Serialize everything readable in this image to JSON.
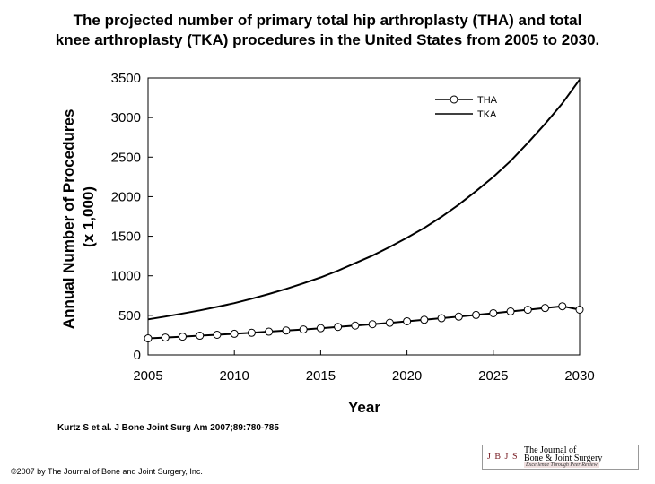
{
  "title_line1": "The projected number of primary total hip arthroplasty (THA) and total",
  "title_line2": "knee arthroplasty (TKA) procedures in the United States from 2005 to 2030.",
  "citation": "Kurtz S et al. J Bone Joint Surg Am 2007;89:780-785",
  "copyright": "©2007 by The Journal of Bone and Joint Surgery, Inc.",
  "logo": {
    "mark": "J B J S",
    "line1": "The Journal of",
    "line2": "Bone & Joint Surgery",
    "tagline": "Excellence Through Peer Review",
    "color": "#7a2027"
  },
  "chart_data": {
    "type": "line",
    "xlabel": "Year",
    "ylabel": [
      "Annual Number of Procedures",
      "(x 1,000)"
    ],
    "xlim": [
      2005,
      2030
    ],
    "ylim": [
      0,
      3500
    ],
    "xticks": [
      2005,
      2010,
      2015,
      2020,
      2025,
      2030
    ],
    "yticks": [
      0,
      500,
      1000,
      1500,
      2000,
      2500,
      3000,
      3500
    ],
    "grid": false,
    "legend_position": "top-right",
    "series": [
      {
        "name": "THA",
        "marker": "circle",
        "color": "#000000",
        "x": [
          2005,
          2006,
          2007,
          2008,
          2009,
          2010,
          2011,
          2012,
          2013,
          2014,
          2015,
          2016,
          2017,
          2018,
          2019,
          2020,
          2021,
          2022,
          2023,
          2024,
          2025,
          2026,
          2027,
          2028,
          2029,
          2030
        ],
        "y": [
          209,
          220,
          231,
          243,
          255,
          267,
          280,
          294,
          308,
          322,
          338,
          354,
          371,
          388,
          406,
          425,
          444,
          464,
          484,
          505,
          527,
          549,
          571,
          593,
          615,
          572
        ]
      },
      {
        "name": "TKA",
        "marker": "none",
        "color": "#000000",
        "x": [
          2005,
          2006,
          2007,
          2008,
          2009,
          2010,
          2011,
          2012,
          2013,
          2014,
          2015,
          2016,
          2017,
          2018,
          2019,
          2020,
          2021,
          2022,
          2023,
          2024,
          2025,
          2026,
          2027,
          2028,
          2029,
          2030
        ],
        "y": [
          450,
          485,
          523,
          563,
          607,
          655,
          710,
          770,
          835,
          905,
          980,
          1065,
          1160,
          1255,
          1365,
          1480,
          1605,
          1745,
          1900,
          2070,
          2250,
          2450,
          2680,
          2920,
          3180,
          3480
        ]
      }
    ]
  }
}
